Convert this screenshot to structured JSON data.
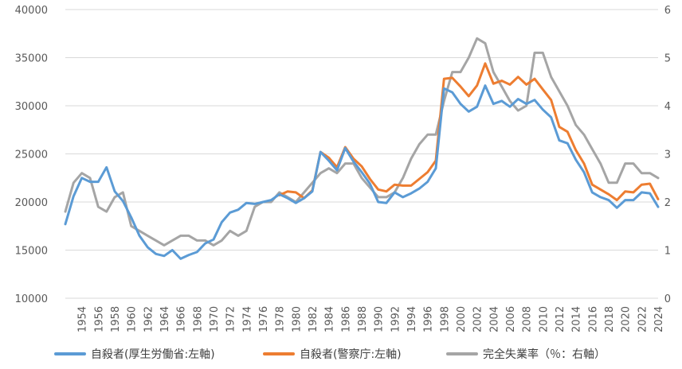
{
  "chart_data": {
    "type": "line",
    "x": [
      1952,
      1953,
      1954,
      1955,
      1956,
      1957,
      1958,
      1959,
      1960,
      1961,
      1962,
      1963,
      1964,
      1965,
      1966,
      1967,
      1968,
      1969,
      1970,
      1971,
      1972,
      1973,
      1974,
      1975,
      1976,
      1977,
      1978,
      1979,
      1980,
      1981,
      1982,
      1983,
      1984,
      1985,
      1986,
      1987,
      1988,
      1989,
      1990,
      1991,
      1992,
      1993,
      1994,
      1995,
      1996,
      1997,
      1998,
      1999,
      2000,
      2001,
      2002,
      2003,
      2004,
      2005,
      2006,
      2007,
      2008,
      2009,
      2010,
      2011,
      2012,
      2013,
      2014,
      2015,
      2016,
      2017,
      2018,
      2019,
      2020,
      2021,
      2022,
      2023,
      2024
    ],
    "x_tick_labels": [
      "1954",
      "1956",
      "1958",
      "1960",
      "1962",
      "1964",
      "1966",
      "1968",
      "1970",
      "1972",
      "1974",
      "1976",
      "1978",
      "1980",
      "1982",
      "1984",
      "1986",
      "1988",
      "1990",
      "1992",
      "1994",
      "1996",
      "1998",
      "2000",
      "2002",
      "2004",
      "2006",
      "2008",
      "2010",
      "2012",
      "2014",
      "2016",
      "2018",
      "2020",
      "2022",
      "2024"
    ],
    "y_left": {
      "ticks": [
        "10000",
        "15000",
        "20000",
        "25000",
        "30000",
        "35000",
        "40000"
      ],
      "min": 10000,
      "max": 40000
    },
    "y_right": {
      "ticks": [
        "0",
        "1",
        "2",
        "3",
        "4",
        "5",
        "6"
      ],
      "min": 0,
      "max": 6
    },
    "grid": true,
    "legend_position": "bottom",
    "series": [
      {
        "name": "自殺者(厚生労働省:左軸)",
        "axis": "left",
        "color": "#5B9BD5",
        "values": [
          17700,
          20600,
          22500,
          22100,
          22100,
          23600,
          21100,
          20100,
          18400,
          16500,
          15300,
          14600,
          14400,
          15000,
          14100,
          14500,
          14800,
          15700,
          16100,
          17900,
          18900,
          19200,
          19900,
          19800,
          20000,
          20200,
          20800,
          20400,
          19900,
          20400,
          21100,
          25200,
          24300,
          23300,
          25600,
          24200,
          23100,
          21900,
          20000,
          19900,
          21000,
          20500,
          20900,
          21400,
          22100,
          23500,
          31800,
          31400,
          30200,
          29400,
          29900,
          32100,
          30200,
          30500,
          29900,
          30700,
          30200,
          30600,
          29600,
          28800,
          26400,
          26100,
          24400,
          23100,
          21000,
          20500,
          20200,
          19400,
          20200,
          20200,
          21000,
          20900,
          19500
        ]
      },
      {
        "name": "自殺者(警察庁:左軸)",
        "axis": "left",
        "color": "#ED7D31",
        "values": [
          null,
          null,
          null,
          null,
          null,
          null,
          null,
          null,
          null,
          null,
          null,
          null,
          null,
          null,
          null,
          null,
          null,
          null,
          null,
          null,
          null,
          null,
          null,
          null,
          null,
          null,
          20700,
          21100,
          21000,
          20400,
          21200,
          25200,
          24600,
          23600,
          25700,
          24500,
          23700,
          22400,
          21300,
          21100,
          21800,
          21700,
          21700,
          22400,
          23100,
          24300,
          32800,
          32900,
          32000,
          31000,
          32100,
          34400,
          32300,
          32600,
          32200,
          33000,
          32200,
          32800,
          31700,
          30600,
          27800,
          27300,
          25400,
          24000,
          21800,
          21300,
          20800,
          20200,
          21100,
          21000,
          21800,
          21900,
          20300
        ]
      },
      {
        "name": "完全失業率（％：右軸）",
        "axis": "right",
        "color": "#A5A5A5",
        "values": [
          1.8,
          2.4,
          2.6,
          2.5,
          1.9,
          1.8,
          2.1,
          2.2,
          1.5,
          1.4,
          1.3,
          1.2,
          1.1,
          1.2,
          1.3,
          1.3,
          1.2,
          1.2,
          1.1,
          1.2,
          1.4,
          1.3,
          1.4,
          1.9,
          2.0,
          2.0,
          2.2,
          2.1,
          2.0,
          2.2,
          2.4,
          2.6,
          2.7,
          2.6,
          2.8,
          2.8,
          2.5,
          2.3,
          2.1,
          2.1,
          2.2,
          2.5,
          2.9,
          3.2,
          3.4,
          3.4,
          4.1,
          4.7,
          4.7,
          5.0,
          5.4,
          5.3,
          4.7,
          4.4,
          4.1,
          3.9,
          4.0,
          5.1,
          5.1,
          4.6,
          4.3,
          4.0,
          3.6,
          3.4,
          3.1,
          2.8,
          2.4,
          2.4,
          2.8,
          2.8,
          2.6,
          2.6,
          2.5
        ]
      }
    ]
  }
}
